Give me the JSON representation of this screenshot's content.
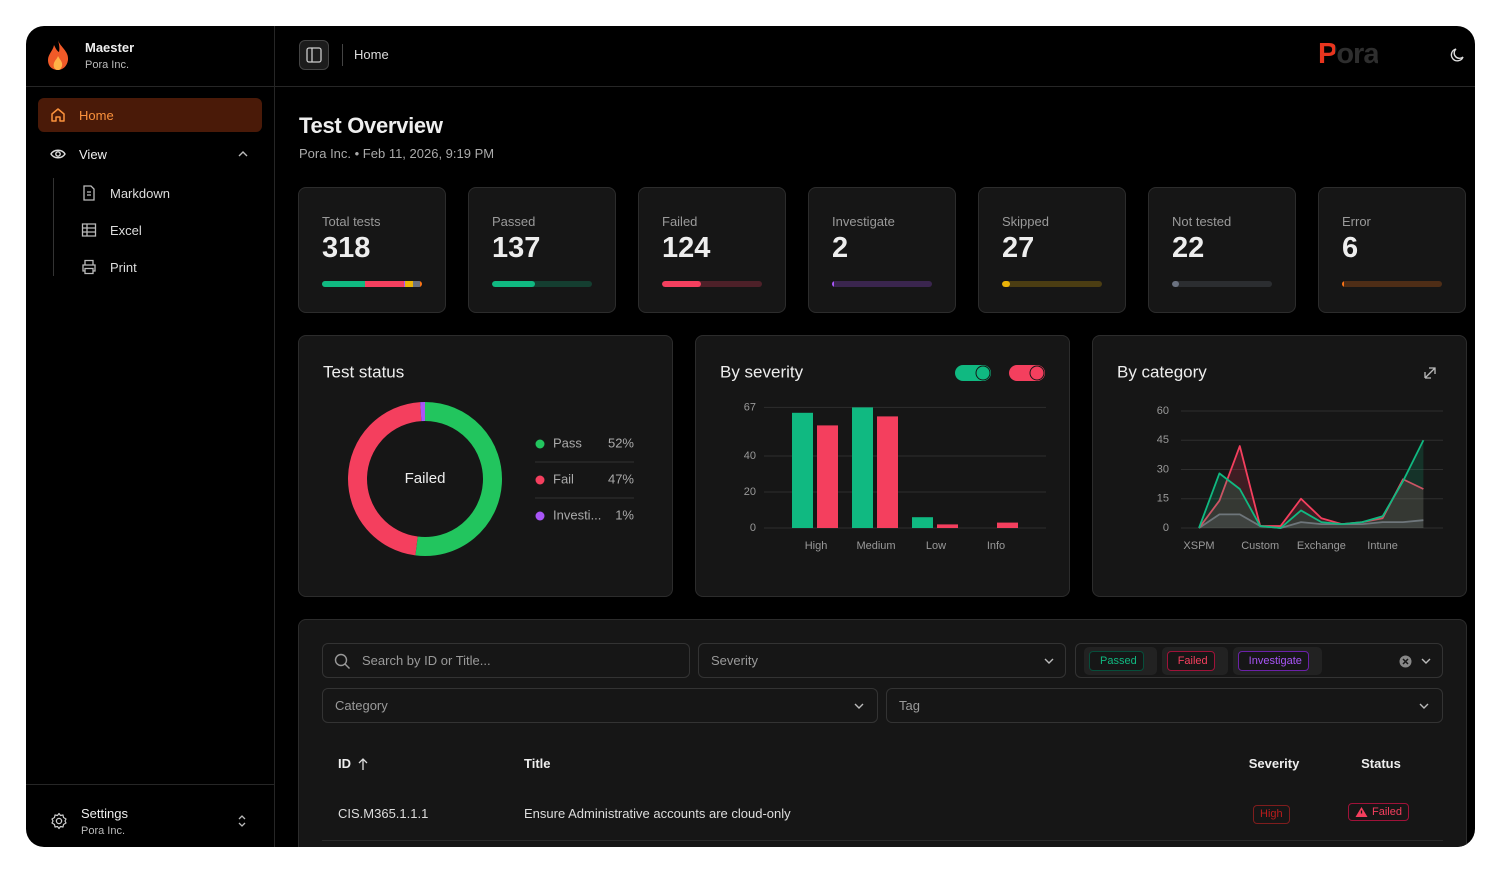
{
  "sidebar": {
    "org_name": "Maester",
    "org_sub": "Pora Inc.",
    "nav": [
      "Home",
      "View"
    ],
    "view_items": [
      "Markdown",
      "Excel",
      "Print"
    ],
    "footer_title": "Settings",
    "footer_sub": "Pora Inc."
  },
  "header": {
    "breadcrumb": "Home",
    "logo": "Pora"
  },
  "overview": {
    "title": "Test Overview",
    "subtitle": "Pora Inc. • Feb 11, 2026, 9:19 PM"
  },
  "cards": [
    {
      "label": "Total tests",
      "value": 318
    },
    {
      "label": "Passed",
      "value": 137,
      "color": "#10b981"
    },
    {
      "label": "Failed",
      "value": 124,
      "color": "#f43f5e"
    },
    {
      "label": "Investigate",
      "value": 2,
      "color": "#a855f7"
    },
    {
      "label": "Skipped",
      "value": 27,
      "color": "#eab308"
    },
    {
      "label": "Not tested",
      "value": 22,
      "color": "#6b7280"
    },
    {
      "label": "Error",
      "value": 6,
      "color": "#f97316"
    }
  ],
  "chart_data": [
    {
      "type": "pie",
      "title": "Test status",
      "center_label": "Failed",
      "categories": [
        "Pass",
        "Fail",
        "Investi..."
      ],
      "values": [
        52,
        47,
        1
      ],
      "value_labels": [
        "52%",
        "47%",
        "1%"
      ],
      "colors": [
        "#22c55e",
        "#f43f5e",
        "#a855f7"
      ]
    },
    {
      "type": "bar",
      "title": "By severity",
      "categories": [
        "High",
        "Medium",
        "Low",
        "Info"
      ],
      "series": [
        {
          "color": "#10b981",
          "values": [
            64,
            67,
            6,
            0
          ]
        },
        {
          "color": "#f43f5e",
          "values": [
            57,
            62,
            2,
            3
          ]
        }
      ],
      "ylim": [
        0,
        67
      ],
      "yticks": [
        0,
        20,
        40,
        67
      ],
      "grid": true
    },
    {
      "type": "area",
      "title": "By category",
      "categories": [
        "XSPM",
        null,
        null,
        "Custom",
        null,
        null,
        "Exchange",
        null,
        null,
        "Intune",
        null,
        null
      ],
      "series": [
        {
          "color": "#6b7280",
          "values": [
            0,
            7,
            7,
            1,
            0,
            3,
            2,
            2,
            2,
            3,
            3,
            4
          ]
        },
        {
          "color": "#f43f5e",
          "values": [
            0,
            14,
            42,
            1,
            1,
            15,
            5,
            2,
            3,
            5,
            25,
            20
          ]
        },
        {
          "color": "#10b981",
          "values": [
            0,
            28,
            20,
            1,
            0,
            9,
            3,
            2,
            3,
            6,
            24,
            45
          ]
        }
      ],
      "ylim": [
        0,
        60
      ],
      "yticks": [
        0,
        15,
        30,
        45,
        60
      ],
      "grid": true
    }
  ],
  "filters": {
    "search_placeholder": "Search by ID or Title...",
    "severity": "Severity",
    "status_chips": [
      "Passed",
      "Failed",
      "Investigate"
    ],
    "category": "Category",
    "tag": "Tag"
  },
  "table": {
    "columns": [
      "ID",
      "Title",
      "Severity",
      "Status"
    ],
    "rows": [
      [
        "CIS.M365.1.1.1",
        "Ensure Administrative accounts are cloud-only",
        "High",
        "Failed"
      ]
    ]
  }
}
